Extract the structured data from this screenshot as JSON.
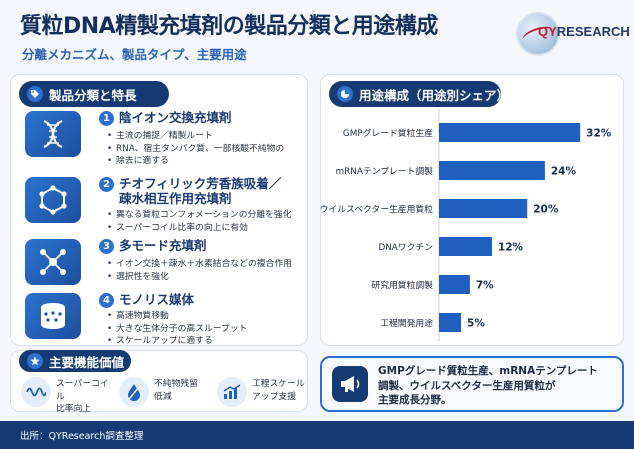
{
  "header": {
    "title": "質粒DNA精製充填剤の製品分類と用途構成",
    "subtitle": "分離メカニズム、製品タイプ、主要用途"
  },
  "logo": {
    "text_q": "QY",
    "text_r": "RESEARCH"
  },
  "left_panel": {
    "title": "製品分類と特長",
    "items": [
      {
        "num": "1",
        "name": "陰イオン交換充填剤",
        "icon": "dna-icon",
        "bullets": [
          "主流の捕捉／精製ルート",
          "RNA、宿主タンパク質、一部核酸不純物の",
          "除去に適する"
        ]
      },
      {
        "num": "2",
        "name_1": "チオフィリック芳香族吸着／",
        "name_2": "疎水相互作用充填剤",
        "icon": "molecule-icon",
        "bullets": [
          "異なる質粒コンフォメーションの分離を強化",
          "スーパーコイル比率の向上に有効"
        ]
      },
      {
        "num": "3",
        "name": "多モード充填剤",
        "icon": "network-icon",
        "bullets": [
          "イオン交換＋疎水＋水素結合などの複合作用",
          "選択性を強化"
        ]
      },
      {
        "num": "4",
        "name": "モノリス媒体",
        "icon": "monolith-icon",
        "bullets": [
          "高速物質移動",
          "大きな生体分子の高スループット",
          "スケールアップに適する"
        ]
      }
    ]
  },
  "features": {
    "title": "主要機能価値",
    "items": [
      {
        "text_1": "スーパーコイル",
        "text_2": "比率向上",
        "icon": "coil-icon"
      },
      {
        "text_1": "不純物残留",
        "text_2": "低減",
        "icon": "drop-icon"
      },
      {
        "text_1": "工程スケール",
        "text_2": "アップ支援",
        "icon": "growth-chart-icon"
      }
    ]
  },
  "right_panel": {
    "title": "用途構成（用途別シェア）"
  },
  "chart_data": {
    "type": "bar",
    "orientation": "horizontal",
    "categories": [
      "GMPグレード質粒生産",
      "mRNAテンプレート調製",
      "ウイルスベクター生産用質粒",
      "DNAワクチン",
      "研究用質粒調製",
      "工程開発用途"
    ],
    "values": [
      32,
      24,
      20,
      12,
      7,
      5
    ],
    "value_suffix": "%",
    "xlim": [
      0,
      34
    ],
    "grid": false,
    "color": "#1f5fbf"
  },
  "summary": {
    "line_1": "GMPグレード質粒生産、mRNAテンプレート",
    "line_2": "調製、ウイルスベクター生産用質粒が",
    "line_3": "主要成長分野。",
    "icon": "megaphone-icon"
  },
  "footer": {
    "source": "出所：QYResearch調査整理"
  }
}
